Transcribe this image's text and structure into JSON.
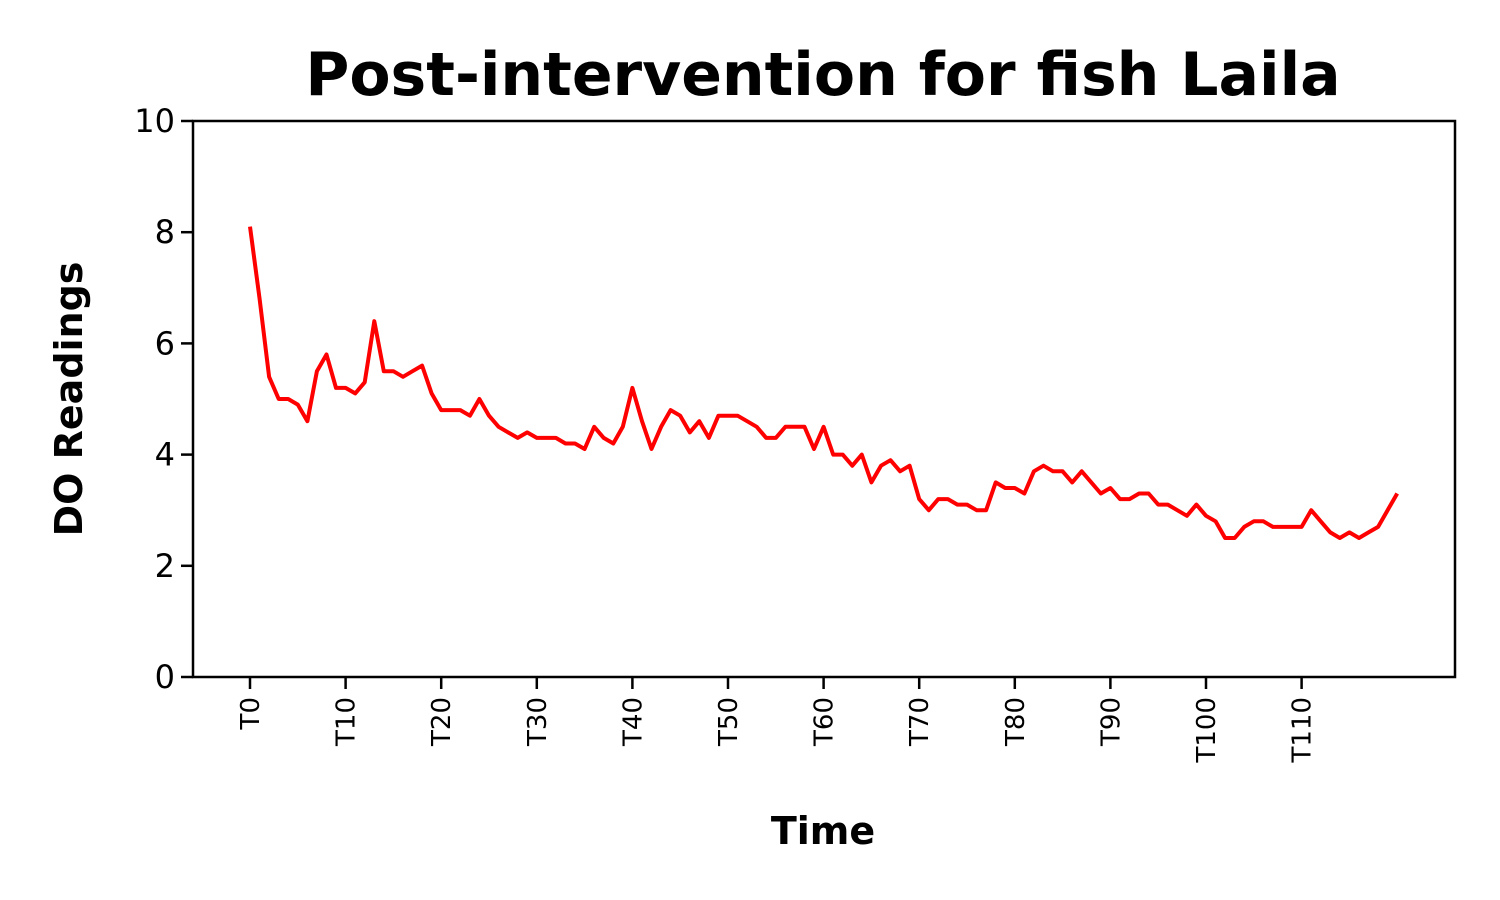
{
  "chart_data": {
    "type": "line",
    "title": "Post-intervention for fish Laila",
    "xlabel": "Time",
    "ylabel": "DO Readings",
    "ylim": [
      0,
      10
    ],
    "yticks": [
      "0",
      "2",
      "4",
      "6",
      "8",
      "10"
    ],
    "xtick_labels": [
      "T0",
      "T10",
      "T20",
      "T30",
      "T40",
      "T50",
      "T60",
      "T70",
      "T80",
      "T90",
      "T100",
      "T110"
    ],
    "grid": false,
    "series": [
      {
        "color": "#ff0000",
        "x": [
          "T0",
          "T1",
          "T2",
          "T3",
          "T4",
          "T5",
          "T6",
          "T7",
          "T8",
          "T9",
          "T10",
          "T11",
          "T12",
          "T13",
          "T14",
          "T15",
          "T16",
          "T17",
          "T18",
          "T19",
          "T20",
          "T21",
          "T22",
          "T23",
          "T24",
          "T25",
          "T26",
          "T27",
          "T28",
          "T29",
          "T30",
          "T31",
          "T32",
          "T33",
          "T34",
          "T35",
          "T36",
          "T37",
          "T38",
          "T39",
          "T40",
          "T41",
          "T42",
          "T43",
          "T44",
          "T45",
          "T46",
          "T47",
          "T48",
          "T49",
          "T50",
          "T51",
          "T52",
          "T53",
          "T54",
          "T55",
          "T56",
          "T57",
          "T58",
          "T59",
          "T60",
          "T61",
          "T62",
          "T63",
          "T64",
          "T65",
          "T66",
          "T67",
          "T68",
          "T69",
          "T70",
          "T71",
          "T72",
          "T73",
          "T74",
          "T75",
          "T76",
          "T77",
          "T78",
          "T79",
          "T80",
          "T81",
          "T82",
          "T83",
          "T84",
          "T85",
          "T86",
          "T87",
          "T88",
          "T89",
          "T90",
          "T91",
          "T92",
          "T93",
          "T94",
          "T95",
          "T96",
          "T97",
          "T98",
          "T99",
          "T100",
          "T101",
          "T102",
          "T103",
          "T104",
          "T105",
          "T106",
          "T107",
          "T108",
          "T109",
          "T110",
          "T111",
          "T112",
          "T113",
          "T114",
          "T115",
          "T116",
          "T117",
          "T118",
          "T119",
          "T120"
        ],
        "values": [
          8.1,
          6.8,
          5.4,
          5.0,
          5.0,
          4.9,
          4.6,
          5.5,
          5.8,
          5.2,
          5.2,
          5.1,
          5.3,
          6.4,
          5.5,
          5.5,
          5.4,
          5.5,
          5.6,
          5.1,
          4.8,
          4.8,
          4.8,
          4.7,
          5.0,
          4.7,
          4.5,
          4.4,
          4.3,
          4.4,
          4.3,
          4.3,
          4.3,
          4.2,
          4.2,
          4.1,
          4.5,
          4.3,
          4.2,
          4.5,
          5.2,
          4.6,
          4.1,
          4.5,
          4.8,
          4.7,
          4.4,
          4.6,
          4.3,
          4.7,
          4.7,
          4.7,
          4.6,
          4.5,
          4.3,
          4.3,
          4.5,
          4.5,
          4.5,
          4.1,
          4.5,
          4.0,
          4.0,
          3.8,
          4.0,
          3.5,
          3.8,
          3.9,
          3.7,
          3.8,
          3.2,
          3.0,
          3.2,
          3.2,
          3.1,
          3.1,
          3.0,
          3.0,
          3.5,
          3.4,
          3.4,
          3.3,
          3.7,
          3.8,
          3.7,
          3.7,
          3.5,
          3.7,
          3.5,
          3.3,
          3.4,
          3.2,
          3.2,
          3.3,
          3.3,
          3.1,
          3.1,
          3.0,
          2.9,
          3.1,
          2.9,
          2.8,
          2.5,
          2.5,
          2.7,
          2.8,
          2.8,
          2.7,
          2.7,
          2.7,
          2.7,
          3.0,
          2.8,
          2.6,
          2.5,
          2.6,
          2.5,
          2.6,
          2.7,
          3.0,
          3.3
        ]
      }
    ]
  }
}
